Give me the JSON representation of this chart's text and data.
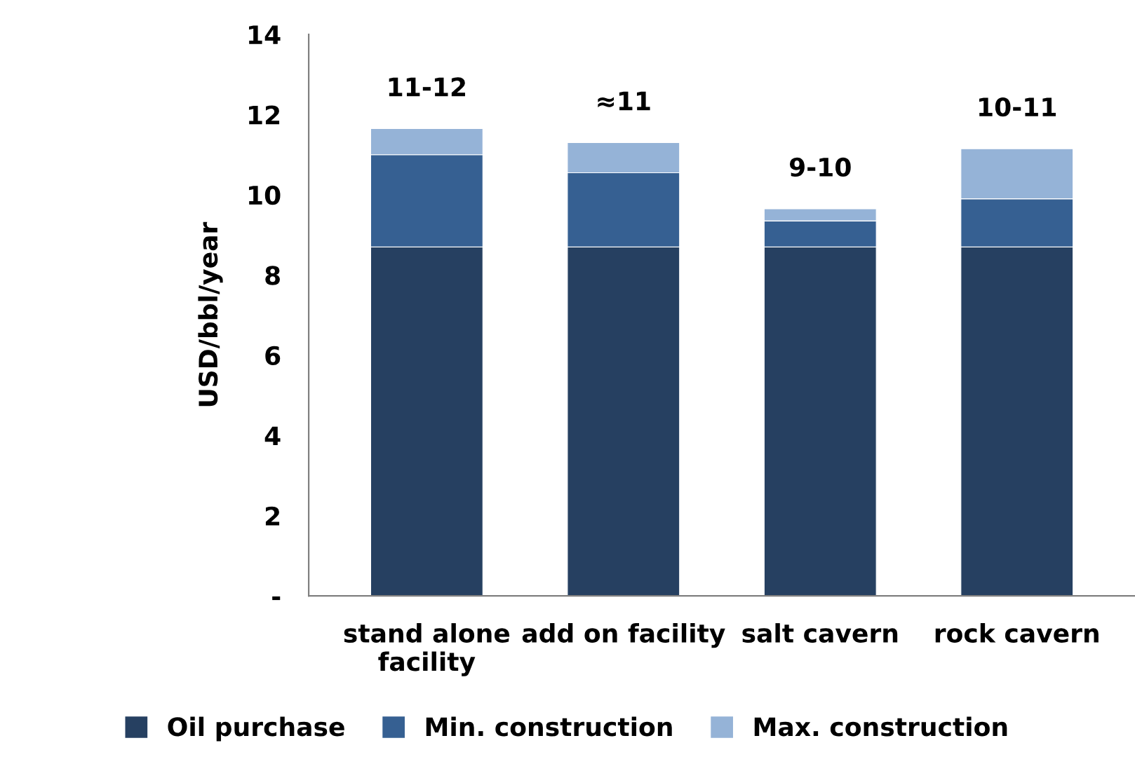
{
  "chart_data": {
    "type": "bar",
    "stacked": true,
    "ylabel": "USD/bbl/year",
    "categories": [
      "stand alone facility",
      "add on facility",
      "salt cavern",
      "rock cavern"
    ],
    "series": [
      {
        "name": "Oil purchase",
        "color": "#264061",
        "values": [
          8.7,
          8.7,
          8.7,
          8.7
        ]
      },
      {
        "name": "Min. construction",
        "color": "#366092",
        "values": [
          2.3,
          1.85,
          0.65,
          1.2
        ]
      },
      {
        "name": "Max. construction",
        "color": "#95b3d7",
        "values": [
          0.65,
          0.75,
          0.3,
          1.25
        ]
      }
    ],
    "totals": [
      "11-12",
      "≈11",
      "9-10",
      "10-11"
    ],
    "ylim": [
      0,
      14
    ],
    "yticks": [
      {
        "value": 0,
        "label": "-"
      },
      2,
      4,
      6,
      8,
      10,
      12,
      14
    ],
    "grid": false,
    "legend": "bottom"
  }
}
